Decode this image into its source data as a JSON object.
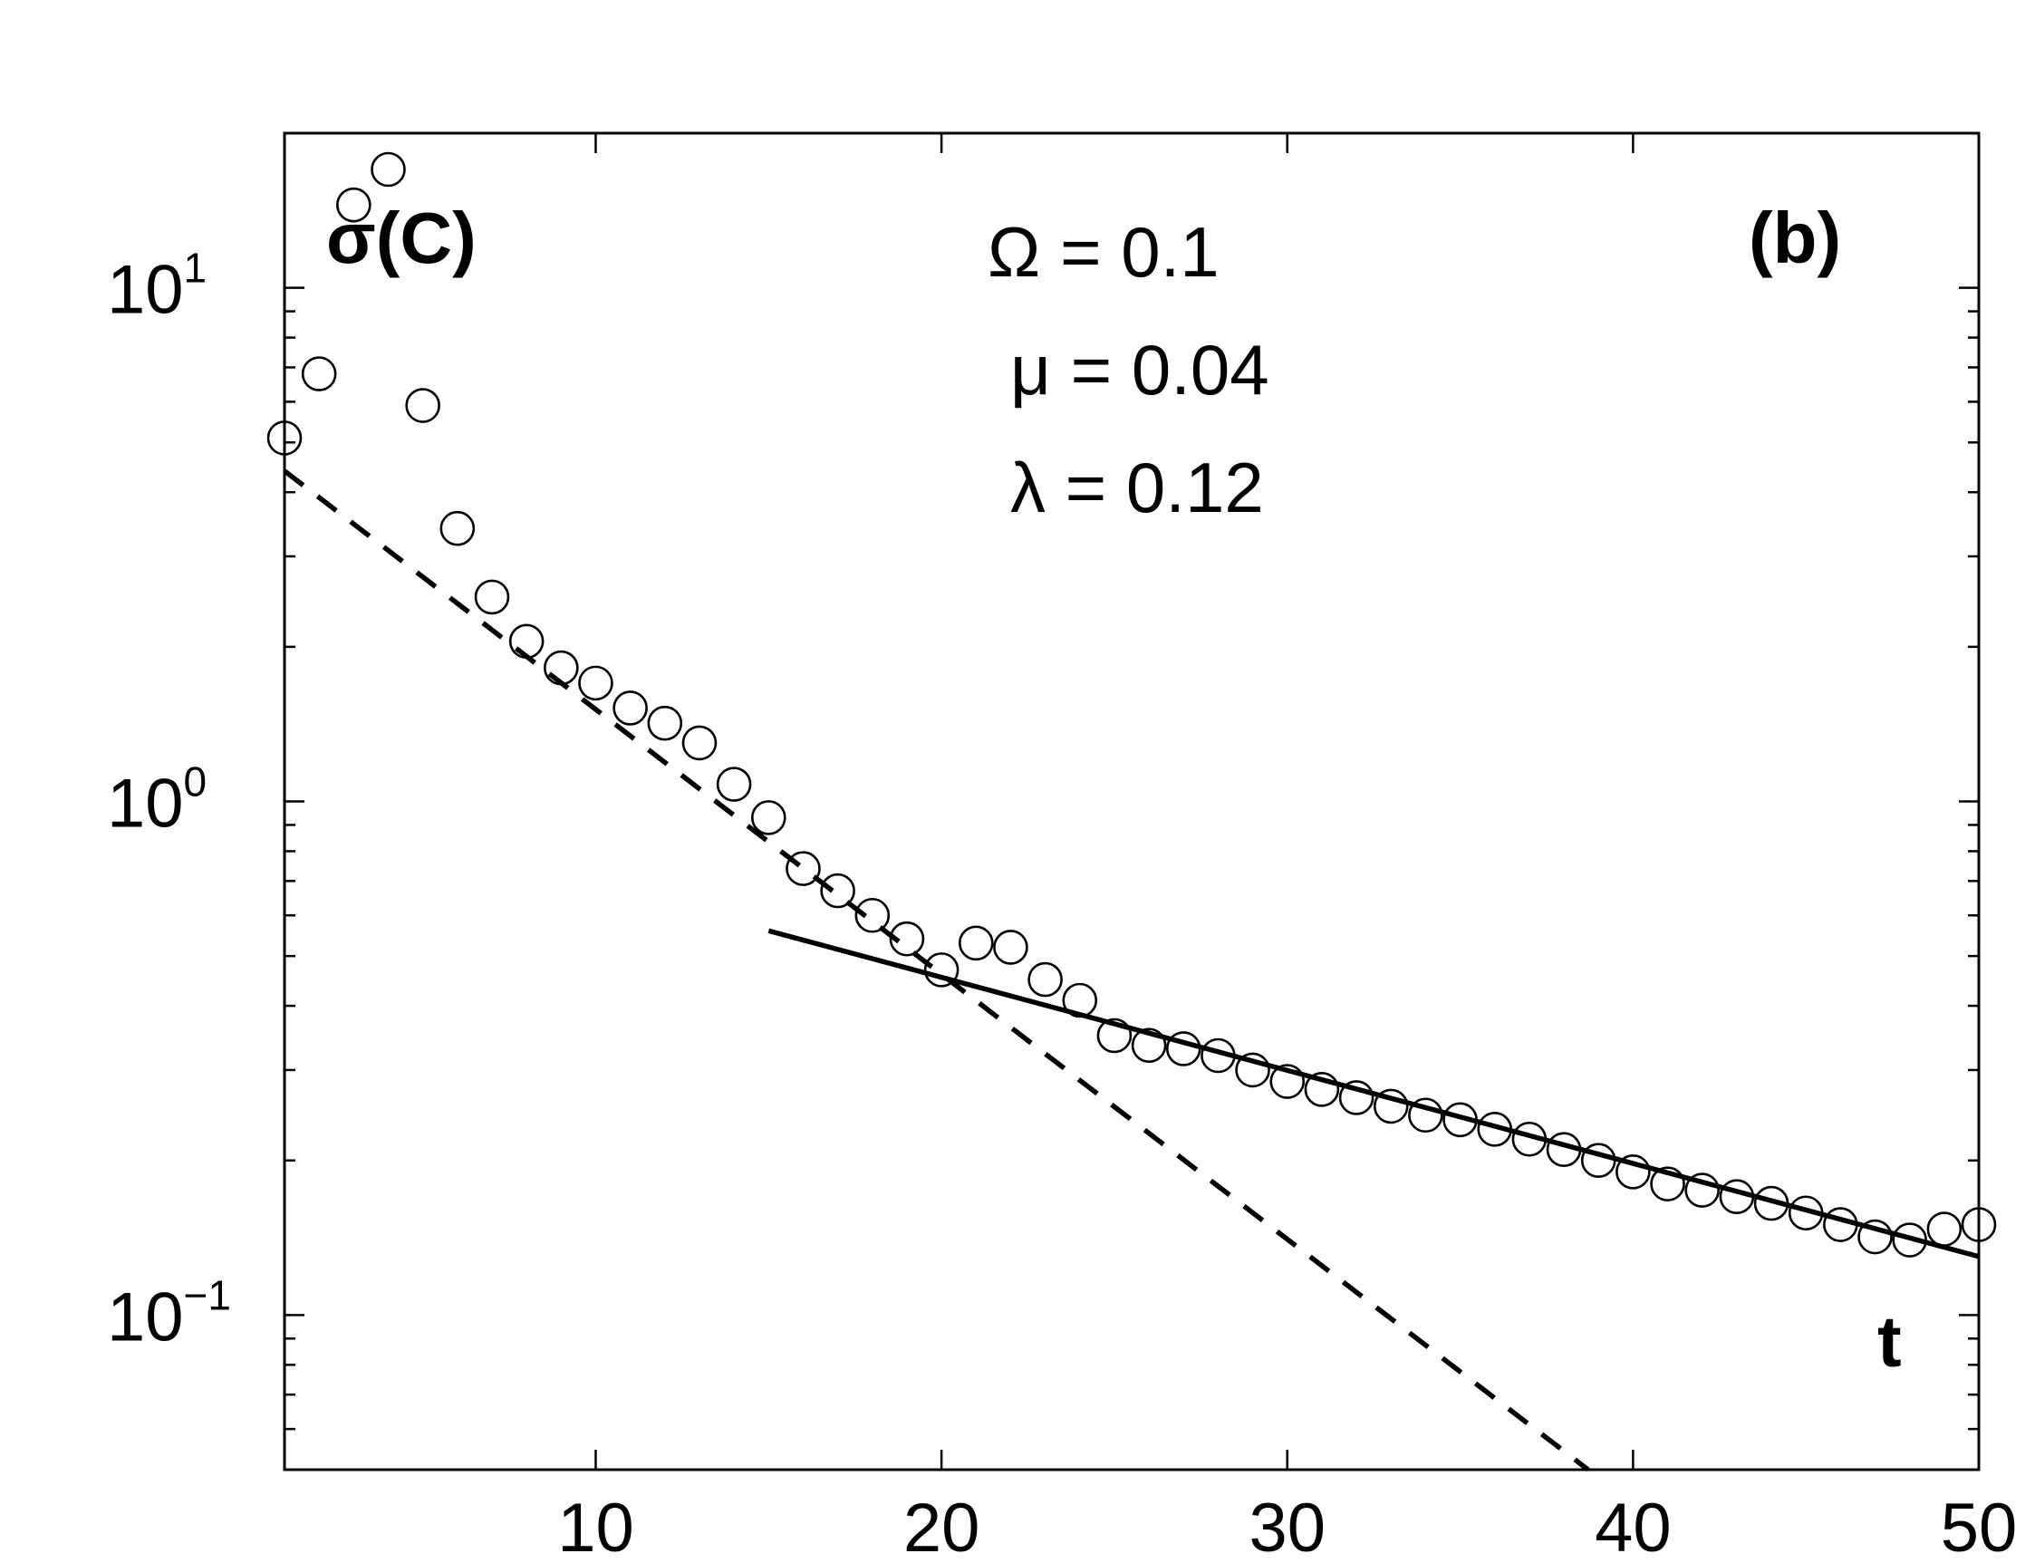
{
  "chart_data": {
    "type": "scatter",
    "panel_label": "(b)",
    "ylabel": "σ(C)",
    "xlabel": "t",
    "y_scale": "log",
    "xlim": [
      1,
      50
    ],
    "ylim": [
      0.05,
      20
    ],
    "x_ticks": [
      10,
      20,
      30,
      40,
      50
    ],
    "y_ticks": [
      {
        "value": 0.1,
        "base": "10",
        "exp": "−1"
      },
      {
        "value": 1,
        "base": "10",
        "exp": "0"
      },
      {
        "value": 10,
        "base": "10",
        "exp": "1"
      }
    ],
    "grid": false,
    "parameters": [
      {
        "symbol": "Ω",
        "text": " = 0.1"
      },
      {
        "symbol": "μ",
        "text": " = 0.04"
      },
      {
        "symbol": "λ",
        "text": " = 0.12"
      }
    ],
    "series": [
      {
        "marker": "open-circle",
        "x": [
          1,
          2,
          3,
          4,
          5,
          6,
          7,
          8,
          9,
          10,
          11,
          12,
          13,
          14,
          15,
          16,
          17,
          18,
          19,
          20,
          21,
          22,
          23,
          24,
          25,
          26,
          27,
          28,
          29,
          30,
          31,
          32,
          33,
          34,
          35,
          36,
          37,
          38,
          39,
          40,
          41,
          42,
          43,
          44,
          45,
          46,
          47,
          48,
          49,
          50
        ],
        "y": [
          5.1,
          6.8,
          14.5,
          17.0,
          5.9,
          3.4,
          2.5,
          2.05,
          1.82,
          1.7,
          1.52,
          1.42,
          1.3,
          1.08,
          0.93,
          0.74,
          0.67,
          0.6,
          0.54,
          0.47,
          0.53,
          0.52,
          0.45,
          0.41,
          0.35,
          0.335,
          0.33,
          0.32,
          0.3,
          0.285,
          0.275,
          0.265,
          0.255,
          0.245,
          0.24,
          0.23,
          0.22,
          0.21,
          0.2,
          0.19,
          0.18,
          0.175,
          0.17,
          0.165,
          0.158,
          0.15,
          0.142,
          0.14,
          0.147,
          0.15
        ]
      }
    ],
    "fits": [
      {
        "style": "dashed",
        "x": [
          1,
          38.7
        ],
        "y": [
          4.4,
          0.05
        ]
      },
      {
        "style": "solid",
        "x": [
          15,
          50
        ],
        "y": [
          0.56,
          0.13
        ]
      }
    ]
  }
}
